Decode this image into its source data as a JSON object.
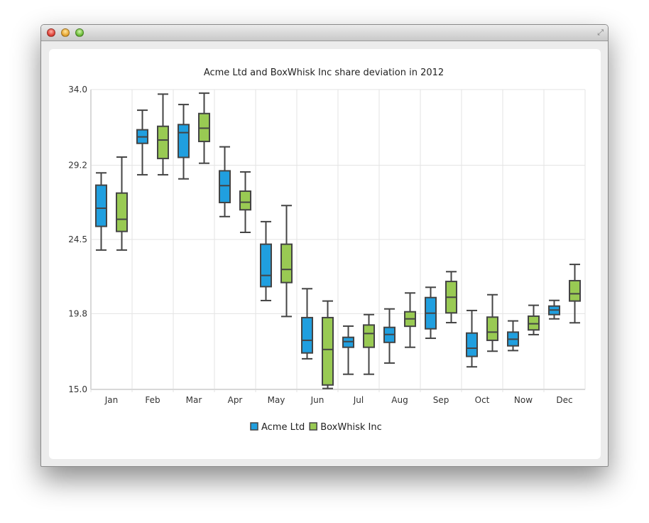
{
  "window": {
    "controls": [
      "close",
      "minimize",
      "zoom"
    ],
    "resize_icon": "fullscreen-arrows-icon"
  },
  "chart_data": {
    "type": "boxplot",
    "title": "Acme Ltd and BoxWhisk Inc share deviation in 2012",
    "categories": [
      "Jan",
      "Feb",
      "Mar",
      "Apr",
      "May",
      "Jun",
      "Jul",
      "Aug",
      "Sep",
      "Oct",
      "Now",
      "Dec"
    ],
    "ylim": [
      15.0,
      34.0
    ],
    "yticks": [
      "15.0",
      "19.8",
      "24.5",
      "29.2",
      "34.0"
    ],
    "grid": true,
    "legend_position": "bottom",
    "series": [
      {
        "name": "Acme Ltd",
        "color": "#209fdf",
        "values": [
          {
            "min": 23.83,
            "q1": 25.33,
            "median": 26.48,
            "q3": 27.94,
            "max": 28.72
          },
          {
            "min": 28.6,
            "q1": 30.59,
            "median": 31.0,
            "q3": 31.45,
            "max": 32.69
          },
          {
            "min": 28.34,
            "q1": 29.7,
            "median": 31.27,
            "q3": 31.78,
            "max": 33.05
          },
          {
            "min": 25.95,
            "q1": 26.84,
            "median": 27.91,
            "q3": 28.85,
            "max": 30.37
          },
          {
            "min": 20.63,
            "q1": 21.51,
            "median": 22.22,
            "q3": 24.2,
            "max": 25.63
          },
          {
            "min": 16.94,
            "q1": 17.31,
            "median": 18.11,
            "q3": 19.55,
            "max": 21.38
          },
          {
            "min": 15.96,
            "q1": 17.67,
            "median": 18.03,
            "q3": 18.3,
            "max": 19.01
          },
          {
            "min": 16.67,
            "q1": 17.98,
            "median": 18.48,
            "q3": 18.93,
            "max": 20.1
          },
          {
            "min": 18.24,
            "q1": 18.84,
            "median": 19.83,
            "q3": 20.82,
            "max": 21.47
          },
          {
            "min": 16.43,
            "q1": 17.09,
            "median": 17.61,
            "q3": 18.57,
            "max": 20.0
          },
          {
            "min": 17.46,
            "q1": 17.76,
            "median": 18.18,
            "q3": 18.63,
            "max": 19.34
          },
          {
            "min": 19.47,
            "q1": 19.74,
            "median": 20.03,
            "q3": 20.28,
            "max": 20.64
          }
        ]
      },
      {
        "name": "BoxWhisk Inc",
        "color": "#99ca53",
        "values": [
          {
            "min": 23.83,
            "q1": 25.01,
            "median": 25.78,
            "q3": 27.44,
            "max": 29.72
          },
          {
            "min": 28.6,
            "q1": 29.63,
            "median": 30.8,
            "q3": 31.67,
            "max": 33.71
          },
          {
            "min": 29.33,
            "q1": 30.71,
            "median": 31.55,
            "q3": 32.48,
            "max": 33.77
          },
          {
            "min": 24.95,
            "q1": 26.38,
            "median": 26.86,
            "q3": 27.56,
            "max": 28.78
          },
          {
            "min": 19.62,
            "q1": 21.77,
            "median": 22.6,
            "q3": 24.2,
            "max": 26.65
          },
          {
            "min": 15.06,
            "q1": 15.28,
            "median": 17.53,
            "q3": 19.55,
            "max": 20.6
          },
          {
            "min": 15.96,
            "q1": 17.67,
            "median": 18.54,
            "q3": 19.08,
            "max": 19.74
          },
          {
            "min": 17.67,
            "q1": 19.0,
            "median": 19.47,
            "q3": 19.92,
            "max": 21.11
          },
          {
            "min": 19.23,
            "q1": 19.85,
            "median": 20.84,
            "q3": 21.84,
            "max": 22.46
          },
          {
            "min": 17.42,
            "q1": 18.11,
            "median": 18.63,
            "q3": 19.58,
            "max": 21.0
          },
          {
            "min": 18.47,
            "q1": 18.77,
            "median": 19.16,
            "q3": 19.64,
            "max": 20.33
          },
          {
            "min": 19.22,
            "q1": 20.6,
            "median": 21.06,
            "q3": 21.89,
            "max": 22.92
          }
        ]
      }
    ]
  }
}
